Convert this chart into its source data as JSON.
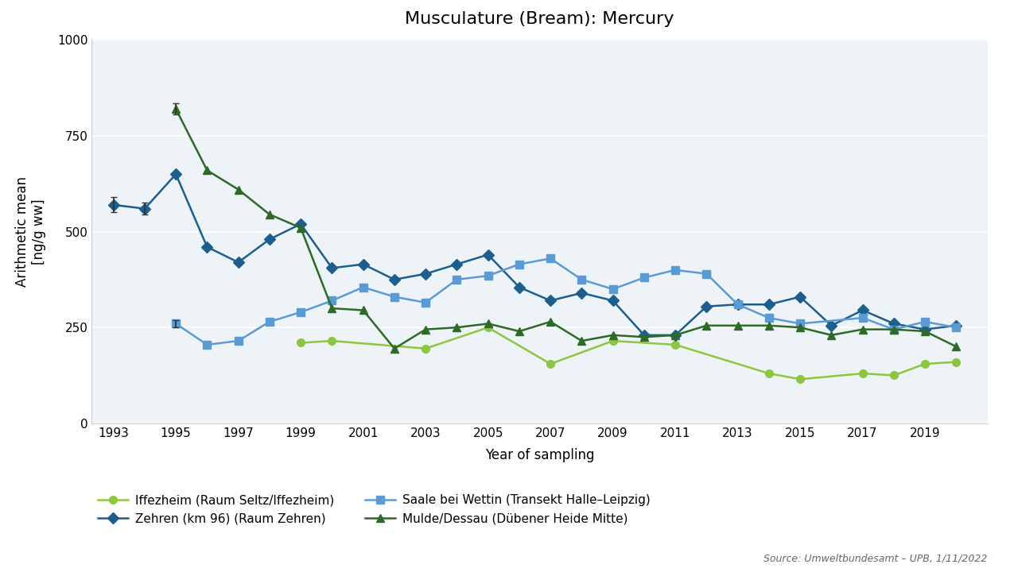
{
  "title": "Musculature (Bream): Mercury",
  "xlabel": "Year of sampling",
  "ylabel": "Arithmetic mean\n[ng/g ww]",
  "source": "Source: Umweltbundesamt – UPB, 1/11/2022",
  "ylim": [
    0,
    1000
  ],
  "yticks": [
    0,
    250,
    500,
    750,
    1000
  ],
  "xlim_min": 1992.3,
  "xlim_max": 2021.0,
  "xticks": [
    1993,
    1995,
    1997,
    1999,
    2001,
    2003,
    2005,
    2007,
    2009,
    2011,
    2013,
    2015,
    2017,
    2019
  ],
  "bg_color": "#eef3f7",
  "series": [
    {
      "name": "Iffezheim (Raum Seltz/Iffezheim)",
      "color": "#8dc63f",
      "marker": "o",
      "markersize": 7,
      "linewidth": 1.8,
      "years": [
        1999,
        2000,
        2003,
        2005,
        2007,
        2009,
        2011,
        2014,
        2015,
        2017,
        2018,
        2019,
        2020
      ],
      "values": [
        210,
        215,
        195,
        250,
        155,
        215,
        205,
        130,
        115,
        130,
        125,
        155,
        160
      ],
      "errorbars": []
    },
    {
      "name": "Zehren (km 96) (Raum Zehren)",
      "color": "#1c5f8e",
      "marker": "D",
      "markersize": 7,
      "linewidth": 1.8,
      "years": [
        1993,
        1994,
        1995,
        1996,
        1997,
        1998,
        1999,
        2000,
        2001,
        2002,
        2003,
        2004,
        2005,
        2006,
        2007,
        2008,
        2009,
        2010,
        2011,
        2012,
        2013,
        2014,
        2015,
        2016,
        2017,
        2018,
        2019,
        2020
      ],
      "values": [
        570,
        560,
        650,
        460,
        420,
        480,
        520,
        405,
        415,
        375,
        390,
        415,
        440,
        355,
        320,
        340,
        320,
        230,
        230,
        305,
        310,
        310,
        330,
        255,
        295,
        260,
        245,
        255
      ],
      "errorbars": [
        {
          "year": 1993,
          "yerr": 20
        },
        {
          "year": 1994,
          "yerr": 15
        }
      ]
    },
    {
      "name": "Saale bei Wettin (Transekt Halle–Leipzig)",
      "color": "#5b9bd5",
      "marker": "s",
      "markersize": 7,
      "linewidth": 1.8,
      "years": [
        1995,
        1996,
        1997,
        1998,
        1999,
        2000,
        2001,
        2002,
        2003,
        2004,
        2005,
        2006,
        2007,
        2008,
        2009,
        2010,
        2011,
        2012,
        2013,
        2014,
        2015,
        2017,
        2018,
        2019,
        2020
      ],
      "values": [
        260,
        205,
        215,
        265,
        290,
        320,
        355,
        330,
        315,
        375,
        385,
        415,
        430,
        375,
        350,
        380,
        400,
        390,
        310,
        275,
        260,
        275,
        245,
        265,
        250
      ],
      "errorbars": [
        {
          "year": 1995,
          "yerr": 10
        }
      ]
    },
    {
      "name": "Mulde/Dessau (Dübener Heide Mitte)",
      "color": "#2d6a27",
      "marker": "^",
      "markersize": 7,
      "linewidth": 1.8,
      "years": [
        1995,
        1996,
        1997,
        1998,
        1999,
        2000,
        2001,
        2002,
        2003,
        2004,
        2005,
        2006,
        2007,
        2008,
        2009,
        2010,
        2011,
        2012,
        2013,
        2014,
        2015,
        2016,
        2017,
        2018,
        2019,
        2020
      ],
      "values": [
        820,
        660,
        610,
        545,
        510,
        300,
        295,
        195,
        245,
        250,
        260,
        240,
        265,
        215,
        230,
        225,
        230,
        255,
        255,
        255,
        250,
        230,
        245,
        245,
        240,
        200
      ],
      "errorbars": [
        {
          "year": 1995,
          "yerr": 15
        }
      ]
    }
  ],
  "legend_order": [
    0,
    1,
    2,
    3
  ]
}
